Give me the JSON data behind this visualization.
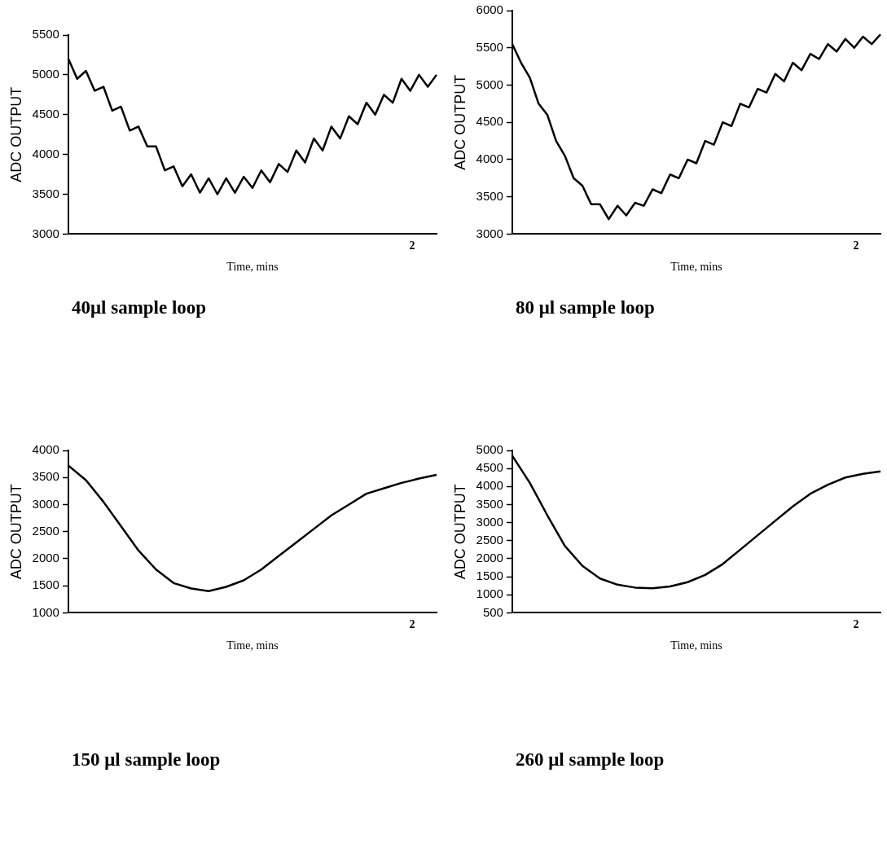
{
  "chart_data": [
    {
      "type": "line",
      "title": "40μl sample loop",
      "xlabel": "Time, mins",
      "ylabel": "ADC OUTPUT",
      "annotations": [
        "2"
      ],
      "ylim": [
        3000,
        5500
      ],
      "yticks": [
        3000,
        3500,
        4000,
        4500,
        5000,
        5500
      ],
      "marker": "none",
      "line_style": "solid",
      "categories": [
        null,
        null,
        null,
        null,
        null,
        null,
        null,
        null,
        null,
        null,
        null,
        null,
        null,
        null,
        null,
        null,
        null,
        null,
        null,
        null,
        null,
        null,
        null,
        null,
        null,
        null,
        null,
        null,
        null,
        null,
        null,
        null,
        null,
        null,
        null,
        null,
        null,
        null,
        null,
        null,
        null,
        null,
        null
      ],
      "series": [
        {
          "color": "#000000",
          "values": [
            5200,
            4950,
            5050,
            4800,
            4850,
            4550,
            4600,
            4300,
            4350,
            4100,
            4100,
            3800,
            3850,
            3600,
            3750,
            3520,
            3700,
            3500,
            3700,
            3520,
            3720,
            3580,
            3800,
            3650,
            3880,
            3780,
            4050,
            3900,
            4200,
            4050,
            4350,
            4200,
            4480,
            4380,
            4650,
            4500,
            4750,
            4650,
            4950,
            4800,
            5000,
            4850,
            5000
          ]
        }
      ]
    },
    {
      "type": "line",
      "title": "80 μl sample loop",
      "xlabel": "Time, mins",
      "ylabel": "ADC OUTPUT",
      "annotations": [
        "2"
      ],
      "ylim": [
        3000,
        6000
      ],
      "yticks": [
        3000,
        3500,
        4000,
        4500,
        5000,
        5500,
        6000
      ],
      "marker": "none",
      "line_style": "solid",
      "categories": [
        null,
        null,
        null,
        null,
        null,
        null,
        null,
        null,
        null,
        null,
        null,
        null,
        null,
        null,
        null,
        null,
        null,
        null,
        null,
        null,
        null,
        null,
        null,
        null,
        null,
        null,
        null,
        null,
        null,
        null,
        null,
        null,
        null,
        null,
        null,
        null,
        null,
        null,
        null,
        null,
        null,
        null,
        null
      ],
      "series": [
        {
          "color": "#000000",
          "values": [
            5550,
            5300,
            5100,
            4750,
            4600,
            4250,
            4050,
            3750,
            3650,
            3400,
            3400,
            3200,
            3380,
            3250,
            3420,
            3380,
            3600,
            3550,
            3800,
            3750,
            4000,
            3950,
            4250,
            4200,
            4500,
            4450,
            4750,
            4700,
            4950,
            4900,
            5150,
            5050,
            5300,
            5200,
            5420,
            5350,
            5550,
            5450,
            5620,
            5500,
            5650,
            5550,
            5680
          ]
        }
      ]
    },
    {
      "type": "line",
      "title": "150 μl sample loop",
      "xlabel": "Time, mins",
      "ylabel": "ADC OUTPUT",
      "annotations": [
        "2"
      ],
      "ylim": [
        1000,
        4000
      ],
      "yticks": [
        1000,
        1500,
        2000,
        2500,
        3000,
        3500,
        4000
      ],
      "marker": "none",
      "line_style": "solid",
      "categories": [
        null,
        null,
        null,
        null,
        null,
        null,
        null,
        null,
        null,
        null,
        null,
        null,
        null,
        null,
        null,
        null,
        null,
        null,
        null,
        null,
        null,
        null
      ],
      "series": [
        {
          "color": "#000000",
          "values": [
            3720,
            3450,
            3050,
            2600,
            2150,
            1800,
            1550,
            1450,
            1400,
            1480,
            1600,
            1800,
            2050,
            2300,
            2550,
            2800,
            3000,
            3200,
            3300,
            3400,
            3480,
            3550
          ]
        }
      ]
    },
    {
      "type": "line",
      "title": "260 μl sample loop",
      "xlabel": "Time, mins",
      "ylabel": "ADC OUTPUT",
      "annotations": [
        "2"
      ],
      "ylim": [
        500,
        5000
      ],
      "yticks": [
        500,
        1000,
        1500,
        2000,
        2500,
        3000,
        3500,
        4000,
        4500,
        5000
      ],
      "marker": "none",
      "line_style": "solid",
      "categories": [
        null,
        null,
        null,
        null,
        null,
        null,
        null,
        null,
        null,
        null,
        null,
        null,
        null,
        null,
        null,
        null,
        null,
        null,
        null,
        null,
        null,
        null
      ],
      "series": [
        {
          "color": "#000000",
          "values": [
            4850,
            4100,
            3200,
            2350,
            1800,
            1450,
            1280,
            1200,
            1180,
            1230,
            1350,
            1550,
            1850,
            2250,
            2650,
            3050,
            3450,
            3800,
            4050,
            4250,
            4350,
            4420
          ]
        }
      ]
    }
  ]
}
